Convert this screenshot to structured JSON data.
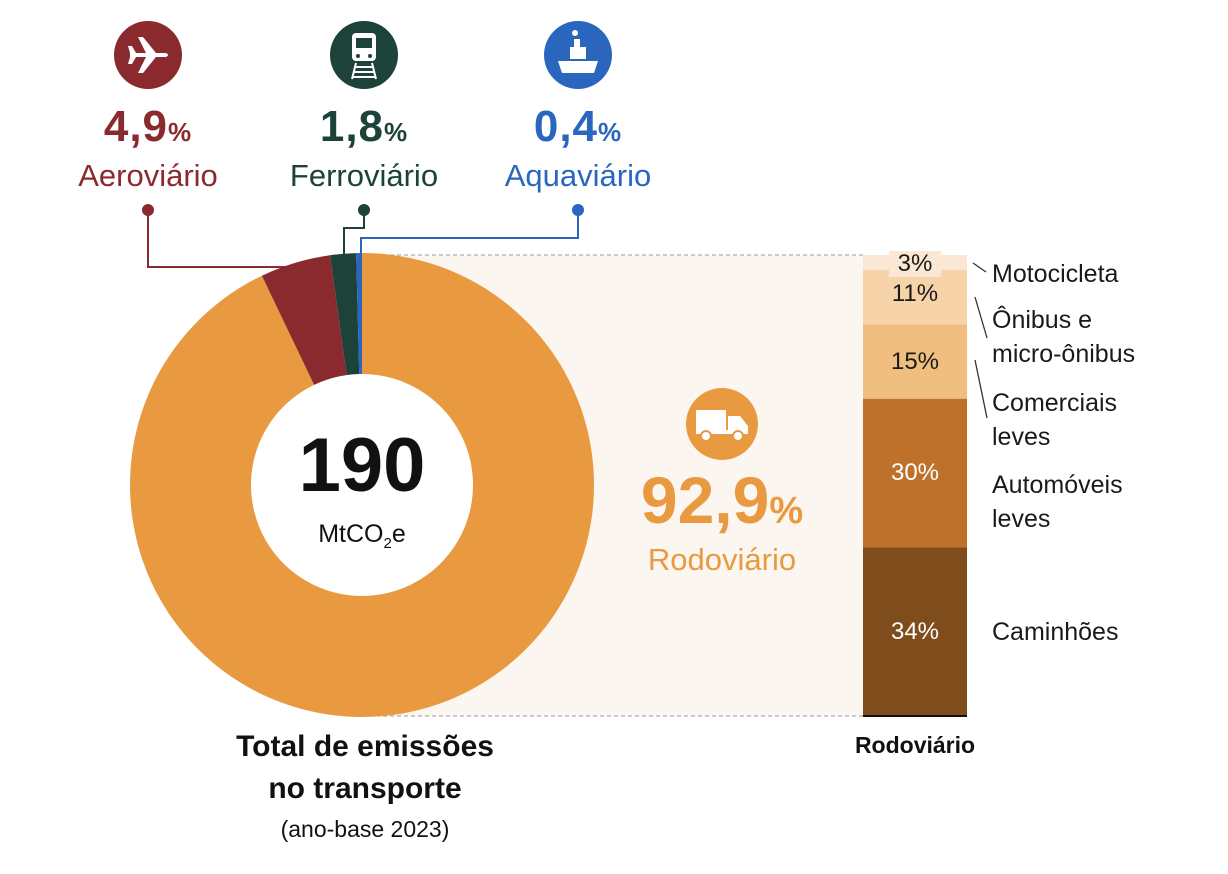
{
  "chart_data": {
    "type": "pie",
    "variant": "donut-with-stacked-bar",
    "center": {
      "value": "190",
      "unit": "MtCO",
      "unit_sub": "2",
      "unit_suffix": "e"
    },
    "title_line1": "Total de emissões",
    "title_line2": "no transporte",
    "subtitle": "(ano-base 2023)",
    "slices": [
      {
        "name": "Rodoviário",
        "value": 92.9,
        "label": "92,9",
        "unit": "%",
        "color": "#E99A40",
        "icon": "truck-icon"
      },
      {
        "name": "Aeroviário",
        "value": 4.9,
        "label": "4,9",
        "unit": "%",
        "color": "#8B2A2E",
        "icon": "airplane-icon"
      },
      {
        "name": "Ferroviário",
        "value": 1.8,
        "label": "1,8",
        "unit": "%",
        "color": "#1C4239",
        "icon": "train-icon"
      },
      {
        "name": "Aquaviário",
        "value": 0.4,
        "label": "0,4",
        "unit": "%",
        "color": "#2A66BE",
        "icon": "ship-icon"
      }
    ],
    "breakdown": {
      "title": "Rodoviário",
      "segments": [
        {
          "name": "Motocicleta",
          "value": 3,
          "label": "3%",
          "color": "#FBE8D4",
          "text_color": "#1a1a1a"
        },
        {
          "name": "Ônibus e micro-ônibus",
          "name_l1": "Ônibus e",
          "name_l2": "micro-ônibus",
          "value": 11,
          "label": "11%",
          "color": "#F6D3A8",
          "text_color": "#1a1a1a"
        },
        {
          "name": "Comerciais leves",
          "name_l1": "Comerciais",
          "name_l2": "leves",
          "value": 15,
          "label": "15%",
          "color": "#F0BE7E",
          "text_color": "#1a1a1a"
        },
        {
          "name": "Automóveis leves",
          "name_l1": "Automóveis",
          "name_l2": "leves",
          "value": 30,
          "label": "30%",
          "color": "#BE712A",
          "text_color": "#ffffff"
        },
        {
          "name": "Caminhões",
          "value": 34,
          "label": "34%",
          "color": "#7F4C1B",
          "text_color": "#ffffff"
        }
      ]
    }
  }
}
